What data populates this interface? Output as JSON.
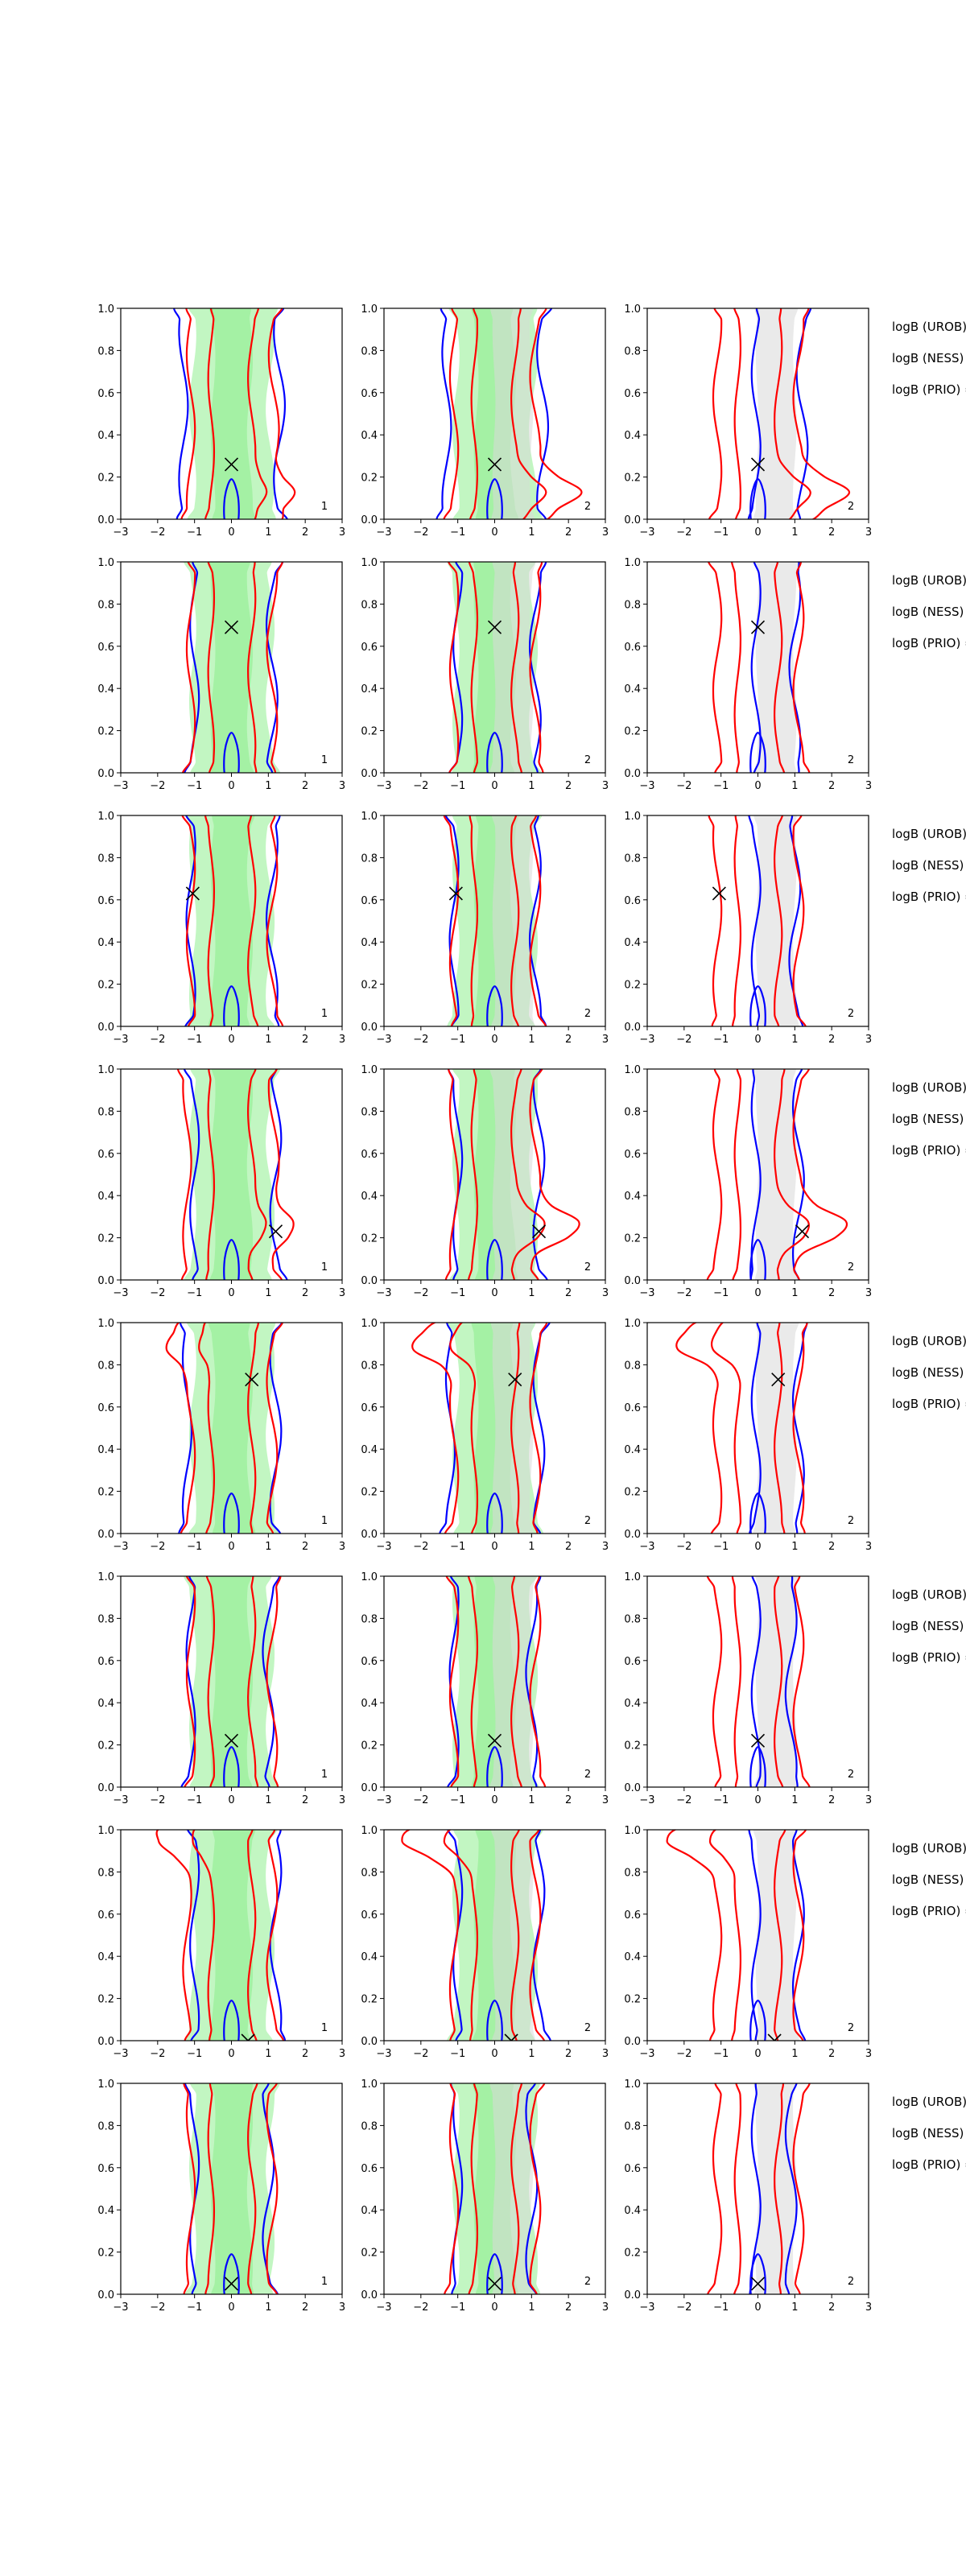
{
  "chart_data": {
    "type": "contour-grid",
    "grid": {
      "rows": 8,
      "cols": 3
    },
    "xlim": [
      -3,
      3
    ],
    "ylim": [
      0,
      1
    ],
    "x_ticks": [
      "−3",
      "−2",
      "−1",
      "0",
      "1",
      "2",
      "3"
    ],
    "y_ticks": [
      "0.0",
      "0.2",
      "0.4",
      "0.6",
      "0.8",
      "1.0"
    ],
    "panel_tags": [
      "1",
      "2",
      "2"
    ],
    "colors": {
      "model_a_line": "#ff0000",
      "model_b_line": "#0000ff",
      "fill_green": "#90ee90",
      "fill_gray": "#d9d9d9",
      "marker": "#000000"
    },
    "rows": [
      {
        "marker": {
          "x": 0.0,
          "y": 0.26
        },
        "blue_extent": [
          -1.3,
          1.3
        ],
        "red_extent": [
          -1.1,
          2.2
        ],
        "red_bulge_y": 0.12
      },
      {
        "marker": {
          "x": 0.0,
          "y": 0.69
        },
        "blue_extent": [
          -1.0,
          1.1
        ],
        "red_extent": [
          -1.1,
          1.1
        ],
        "red_bulge_y": null
      },
      {
        "marker": {
          "x": -1.05,
          "y": 0.63
        },
        "blue_extent": [
          -1.1,
          1.1
        ],
        "red_extent": [
          -1.1,
          1.1
        ],
        "red_bulge_y": null
      },
      {
        "marker": {
          "x": 1.2,
          "y": 0.23
        },
        "blue_extent": [
          -1.0,
          1.2
        ],
        "red_extent": [
          -1.6,
          2.3
        ],
        "red_bulge_y": 0.25
      },
      {
        "marker": {
          "x": 0.55,
          "y": 0.73
        },
        "blue_extent": [
          -1.2,
          1.2
        ],
        "red_extent": [
          -1.5,
          1.5
        ],
        "red_bulge_y": 0.9
      },
      {
        "marker": {
          "x": 0.0,
          "y": 0.22
        },
        "blue_extent": [
          -1.1,
          1.0
        ],
        "red_extent": [
          -1.1,
          1.1
        ],
        "red_bulge_y": null
      },
      {
        "marker": {
          "x": 0.45,
          "y": 0.0
        },
        "blue_extent": [
          -1.0,
          1.2
        ],
        "red_extent": [
          -2.4,
          1.1
        ],
        "red_bulge_y": 0.95
      },
      {
        "marker": {
          "x": 0.0,
          "y": 0.05
        },
        "blue_extent": [
          -1.0,
          1.0
        ],
        "red_extent": [
          -1.1,
          1.1
        ],
        "red_bulge_y": null
      }
    ],
    "row_labels": [
      "logB (UROB) =",
      "logB (NESS) =",
      "logB (PRIO) ="
    ]
  }
}
